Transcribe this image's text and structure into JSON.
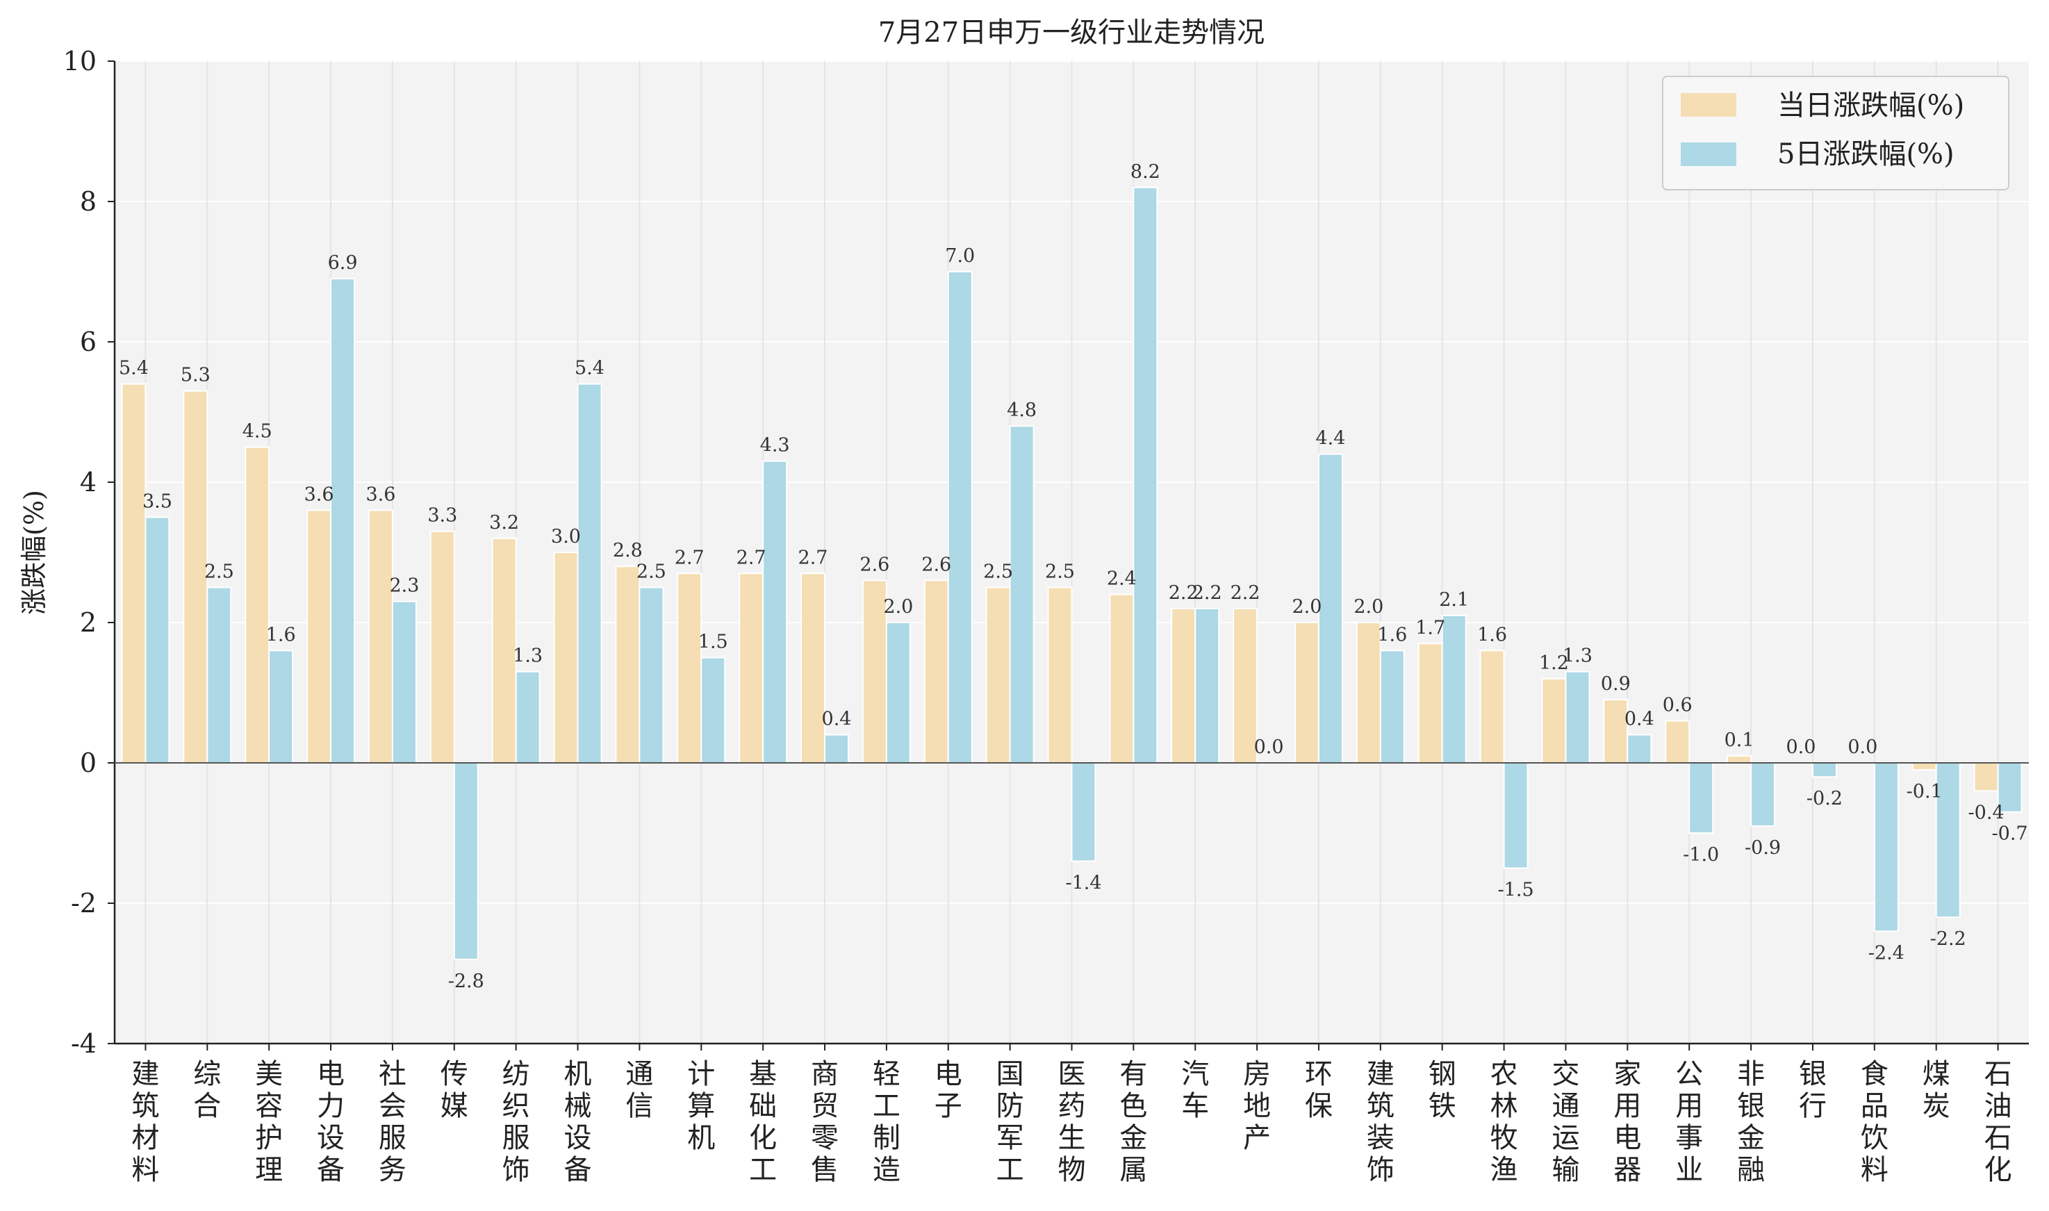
{
  "chart_data": {
    "type": "bar",
    "title": "7月27日申万一级行业走势情况",
    "xlabel": "",
    "ylabel": "涨跌幅(%)",
    "ylim": [
      -4,
      10
    ],
    "yticks": [
      -4,
      -2,
      0,
      2,
      4,
      6,
      8,
      10
    ],
    "grid": true,
    "legend_position": "top-right",
    "colors": {
      "series1": "#f5deb3",
      "series2": "#add8e6",
      "background": "#f3f3f3"
    },
    "categories": [
      "建筑材料",
      "综合",
      "美容护理",
      "电力设备",
      "社会服务",
      "传媒",
      "纺织服饰",
      "机械设备",
      "通信",
      "计算机",
      "基础化工",
      "商贸零售",
      "轻工制造",
      "电子",
      "国防军工",
      "医药生物",
      "有色金属",
      "汽车",
      "房地产",
      "环保",
      "建筑装饰",
      "钢铁",
      "农林牧渔",
      "交通运输",
      "家用电器",
      "公用事业",
      "非银金融",
      "银行",
      "食品饮料",
      "煤炭",
      "石油石化"
    ],
    "series": [
      {
        "name": "当日涨跌幅(%)",
        "values": [
          5.4,
          5.3,
          4.5,
          3.6,
          3.6,
          3.3,
          3.2,
          3.0,
          2.8,
          2.7,
          2.7,
          2.7,
          2.6,
          2.6,
          2.5,
          2.5,
          2.4,
          2.2,
          2.2,
          2.0,
          2.0,
          1.7,
          1.6,
          1.2,
          0.9,
          0.6,
          0.1,
          0.0,
          0.0,
          -0.1,
          -0.4
        ]
      },
      {
        "name": "5日涨跌幅(%)",
        "values": [
          3.5,
          2.5,
          1.6,
          6.9,
          2.3,
          -2.8,
          1.3,
          5.4,
          2.5,
          1.5,
          4.3,
          0.4,
          2.0,
          7.0,
          4.8,
          -1.4,
          8.2,
          2.2,
          0.0,
          4.4,
          1.6,
          2.1,
          -1.5,
          1.3,
          0.4,
          -1.0,
          -0.9,
          -0.2,
          -2.4,
          -2.2,
          -0.7
        ]
      }
    ]
  }
}
